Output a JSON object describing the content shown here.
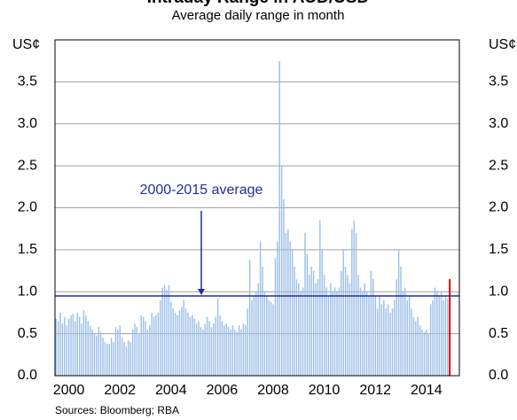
{
  "chart_data": {
    "type": "bar",
    "title": "Intraday Range in AUD/USD",
    "subtitle": "Average daily range in month",
    "y_unit": "US¢",
    "source": "Sources: Bloomberg; RBA",
    "annotation": "2000-2015 average",
    "average": 0.95,
    "average_color": "#1f2f9e",
    "color": "#9dc0e8",
    "highlight_color": "#e00000",
    "highlight_last": true,
    "grid": true,
    "ylim": [
      0,
      4
    ],
    "yticks": [
      {
        "value": 0,
        "label": "0.0"
      },
      0.5,
      {
        "value": 1,
        "label": "1.0"
      },
      1.5,
      {
        "value": 2,
        "label": "2.0"
      },
      2.5,
      {
        "value": 3,
        "label": "3.0"
      },
      3.5
    ],
    "y2lim": [
      0,
      4
    ],
    "y2ticks": [
      {
        "value": 0,
        "label": "0.0"
      },
      0.5,
      {
        "value": 1,
        "label": "1.0"
      },
      1.5,
      {
        "value": 2,
        "label": "2.0"
      },
      2.5,
      {
        "value": 3,
        "label": "3.0"
      },
      3.5
    ],
    "categories": [
      null,
      null,
      null,
      null,
      null,
      null,
      "2000",
      null,
      null,
      null,
      null,
      null,
      null,
      null,
      null,
      null,
      null,
      null,
      null,
      null,
      null,
      null,
      null,
      null,
      null,
      null,
      null,
      null,
      null,
      null,
      "2002",
      null,
      null,
      null,
      null,
      null,
      null,
      null,
      null,
      null,
      null,
      null,
      null,
      null,
      null,
      null,
      null,
      null,
      null,
      null,
      null,
      null,
      null,
      null,
      "2004",
      null,
      null,
      null,
      null,
      null,
      null,
      null,
      null,
      null,
      null,
      null,
      null,
      null,
      null,
      null,
      null,
      null,
      null,
      null,
      null,
      null,
      null,
      null,
      "2006",
      null,
      null,
      null,
      null,
      null,
      null,
      null,
      null,
      null,
      null,
      null,
      null,
      null,
      null,
      null,
      null,
      null,
      null,
      null,
      null,
      null,
      null,
      null,
      "2008",
      null,
      null,
      null,
      null,
      null,
      null,
      null,
      null,
      null,
      null,
      null,
      null,
      null,
      null,
      null,
      null,
      null,
      null,
      null,
      null,
      null,
      null,
      null,
      "2010",
      null,
      null,
      null,
      null,
      null,
      null,
      null,
      null,
      null,
      null,
      null,
      null,
      null,
      null,
      null,
      null,
      null,
      null,
      null,
      null,
      null,
      null,
      null,
      "2012",
      null,
      null,
      null,
      null,
      null,
      null,
      null,
      null,
      null,
      null,
      null,
      null,
      null,
      null,
      null,
      null,
      null,
      null,
      null,
      null,
      null,
      null,
      null,
      "2014",
      null,
      null,
      null,
      null,
      null,
      null,
      null,
      null,
      null,
      null,
      null
    ],
    "values": [
      0.68,
      0.65,
      0.75,
      0.62,
      0.7,
      0.6,
      0.68,
      0.72,
      0.74,
      0.65,
      0.75,
      0.7,
      0.62,
      0.78,
      0.72,
      0.65,
      0.6,
      0.55,
      0.5,
      0.48,
      0.58,
      0.52,
      0.45,
      0.4,
      0.38,
      0.38,
      0.45,
      0.4,
      0.58,
      0.55,
      0.6,
      0.45,
      0.4,
      0.35,
      0.42,
      0.4,
      0.55,
      0.62,
      0.58,
      0.5,
      0.72,
      0.7,
      0.65,
      0.55,
      0.6,
      0.75,
      0.7,
      0.72,
      0.75,
      0.9,
      1.05,
      1.08,
      1.02,
      1.08,
      0.88,
      0.8,
      0.75,
      0.72,
      0.78,
      0.82,
      0.9,
      0.8,
      0.75,
      0.7,
      0.72,
      0.68,
      0.62,
      0.65,
      0.58,
      0.55,
      0.62,
      0.7,
      0.65,
      0.58,
      0.62,
      0.7,
      0.92,
      0.72,
      0.65,
      0.6,
      0.62,
      0.58,
      0.55,
      0.6,
      0.55,
      0.52,
      0.6,
      0.55,
      0.62,
      0.6,
      0.8,
      1.38,
      0.9,
      0.95,
      1.0,
      1.1,
      1.6,
      1.3,
      1.0,
      0.95,
      0.9,
      0.88,
      0.85,
      1.4,
      1.6,
      3.75,
      2.5,
      2.1,
      1.7,
      1.75,
      1.6,
      1.5,
      1.3,
      1.15,
      1.1,
      1.0,
      1.05,
      1.7,
      1.45,
      1.2,
      1.3,
      1.25,
      1.1,
      1.15,
      1.85,
      1.5,
      1.2,
      1.05,
      0.95,
      1.1,
      1.0,
      1.05,
      1.0,
      1.05,
      1.25,
      1.5,
      1.3,
      1.2,
      1.1,
      1.75,
      1.85,
      1.7,
      1.2,
      1.05,
      1.0,
      1.1,
      1.0,
      0.95,
      1.25,
      1.15,
      0.95,
      0.8,
      0.95,
      0.85,
      0.9,
      0.8,
      0.85,
      0.75,
      0.8,
      0.9,
      1.15,
      1.5,
      1.3,
      1.0,
      1.05,
      0.9,
      0.95,
      0.8,
      0.7,
      0.65,
      0.7,
      0.6,
      0.55,
      0.52,
      0.55,
      0.5,
      0.85,
      0.9,
      1.05,
      1.0,
      0.95,
      1.0,
      0.9,
      0.95,
      0.92,
      1.15
    ]
  }
}
